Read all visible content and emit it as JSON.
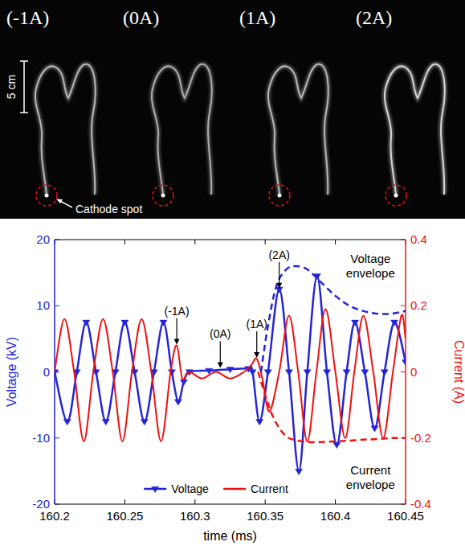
{
  "image_panel": {
    "frame_labels": [
      "(-1A)",
      "(0A)",
      "(1A)",
      "(2A)"
    ],
    "scale_bar_label": "5 cm",
    "spot_label": "Cathode spot"
  },
  "chart_data": {
    "type": "line",
    "x_label": "time (ms)",
    "y_label": "Voltage (kV)",
    "y2_label": "Current (A)",
    "xlim": [
      160.2,
      160.45
    ],
    "xticks": [
      160.2,
      160.25,
      160.3,
      160.35,
      160.4,
      160.45
    ],
    "ylim": [
      -20,
      20
    ],
    "yticks": [
      -20,
      -10,
      0,
      10,
      20
    ],
    "y2lim": [
      -0.4,
      0.4
    ],
    "y2ticks": [
      -0.4,
      -0.2,
      0,
      0.2,
      0.4
    ],
    "grid": false,
    "legend": "bottom",
    "series": [
      {
        "name": "Voltage",
        "color": "#2424d6",
        "marker": "triangle",
        "line_style": "solid",
        "x": [
          160.2,
          160.209,
          160.2158,
          160.2225,
          160.2295,
          160.2365,
          160.2433,
          160.25,
          160.257,
          160.264,
          160.2708,
          160.2775,
          160.2835,
          160.288,
          160.292,
          160.296,
          160.31,
          160.325,
          160.338,
          160.341,
          160.346,
          160.352,
          160.36,
          160.367,
          160.374,
          160.38,
          160.387,
          160.394,
          160.401,
          160.408,
          160.414,
          160.421,
          160.428,
          160.435,
          160.442,
          160.45
        ],
        "values": [
          0,
          -7.5,
          0,
          7.5,
          0,
          -7.5,
          0,
          7.5,
          0,
          -7.5,
          0,
          7.5,
          0,
          -4.5,
          -1.5,
          0,
          0.2,
          0.4,
          0.5,
          0,
          -7.5,
          0,
          12.5,
          0,
          -15,
          0,
          14.5,
          0,
          -11,
          0,
          7.5,
          0,
          -8.5,
          0,
          7.5,
          1.5
        ]
      },
      {
        "name": "Current",
        "color": "#ee1111",
        "line_style": "solid",
        "axis": "y2",
        "x": [
          160.2,
          160.207,
          160.2139,
          160.2208,
          160.2276,
          160.2345,
          160.2414,
          160.2483,
          160.2551,
          160.262,
          160.2689,
          160.2758,
          160.2826,
          160.287,
          160.291,
          160.296,
          160.305,
          160.315,
          160.325,
          160.335,
          160.34,
          160.344,
          160.348,
          160.353,
          160.36,
          160.367,
          160.3735,
          160.38,
          160.3865,
          160.393,
          160.4,
          160.407,
          160.4135,
          160.42,
          160.427,
          160.434,
          160.441,
          160.447,
          160.45
        ],
        "values": [
          0,
          0.16,
          0,
          -0.21,
          0,
          0.16,
          0,
          -0.21,
          0,
          0.16,
          0,
          -0.21,
          0,
          0.08,
          -0.02,
          0,
          -0.02,
          0,
          -0.02,
          0,
          0.02,
          0.04,
          -0.02,
          -0.12,
          0,
          0.17,
          0,
          -0.21,
          0,
          0.19,
          0,
          -0.2,
          0,
          0.17,
          0,
          -0.2,
          0,
          0.17,
          0.1
        ]
      },
      {
        "color": "#2424d6",
        "line_style": "dashed",
        "x": [
          160.347,
          160.352,
          160.358,
          160.365,
          160.372,
          160.38,
          160.39,
          160.4,
          160.41,
          160.42,
          160.43,
          160.44,
          160.45
        ],
        "values": [
          0,
          7,
          13,
          15.5,
          16,
          15.5,
          13.5,
          11.5,
          10,
          9.2,
          8.8,
          8.8,
          9.2
        ]
      },
      {
        "color": "#ee1111",
        "line_style": "dashed",
        "axis": "y2",
        "x": [
          160.345,
          160.35,
          160.355,
          160.36,
          160.365,
          160.37,
          160.38,
          160.39,
          160.4,
          160.41,
          160.42,
          160.43,
          160.44,
          160.45
        ],
        "values": [
          0,
          -0.07,
          -0.13,
          -0.17,
          -0.195,
          -0.205,
          -0.212,
          -0.212,
          -0.21,
          -0.208,
          -0.205,
          -0.203,
          -0.2,
          -0.2
        ]
      }
    ],
    "annotations": [
      {
        "text": "(-1A)",
        "x": 160.287,
        "y": 4,
        "arrow": true
      },
      {
        "text": "(0A)",
        "x": 160.318,
        "y": 0.5,
        "arrow": true
      },
      {
        "text": "(1A)",
        "x": 160.344,
        "y": 2,
        "arrow": true
      },
      {
        "text": "(2A)",
        "x": 160.36,
        "y": 12.5,
        "arrow": true
      },
      {
        "text": "Voltage envelope",
        "x": 160.425,
        "y": 16,
        "arrow": false
      },
      {
        "text": "Current envelope",
        "x": 160.425,
        "y": -16,
        "arrow": false
      }
    ]
  }
}
